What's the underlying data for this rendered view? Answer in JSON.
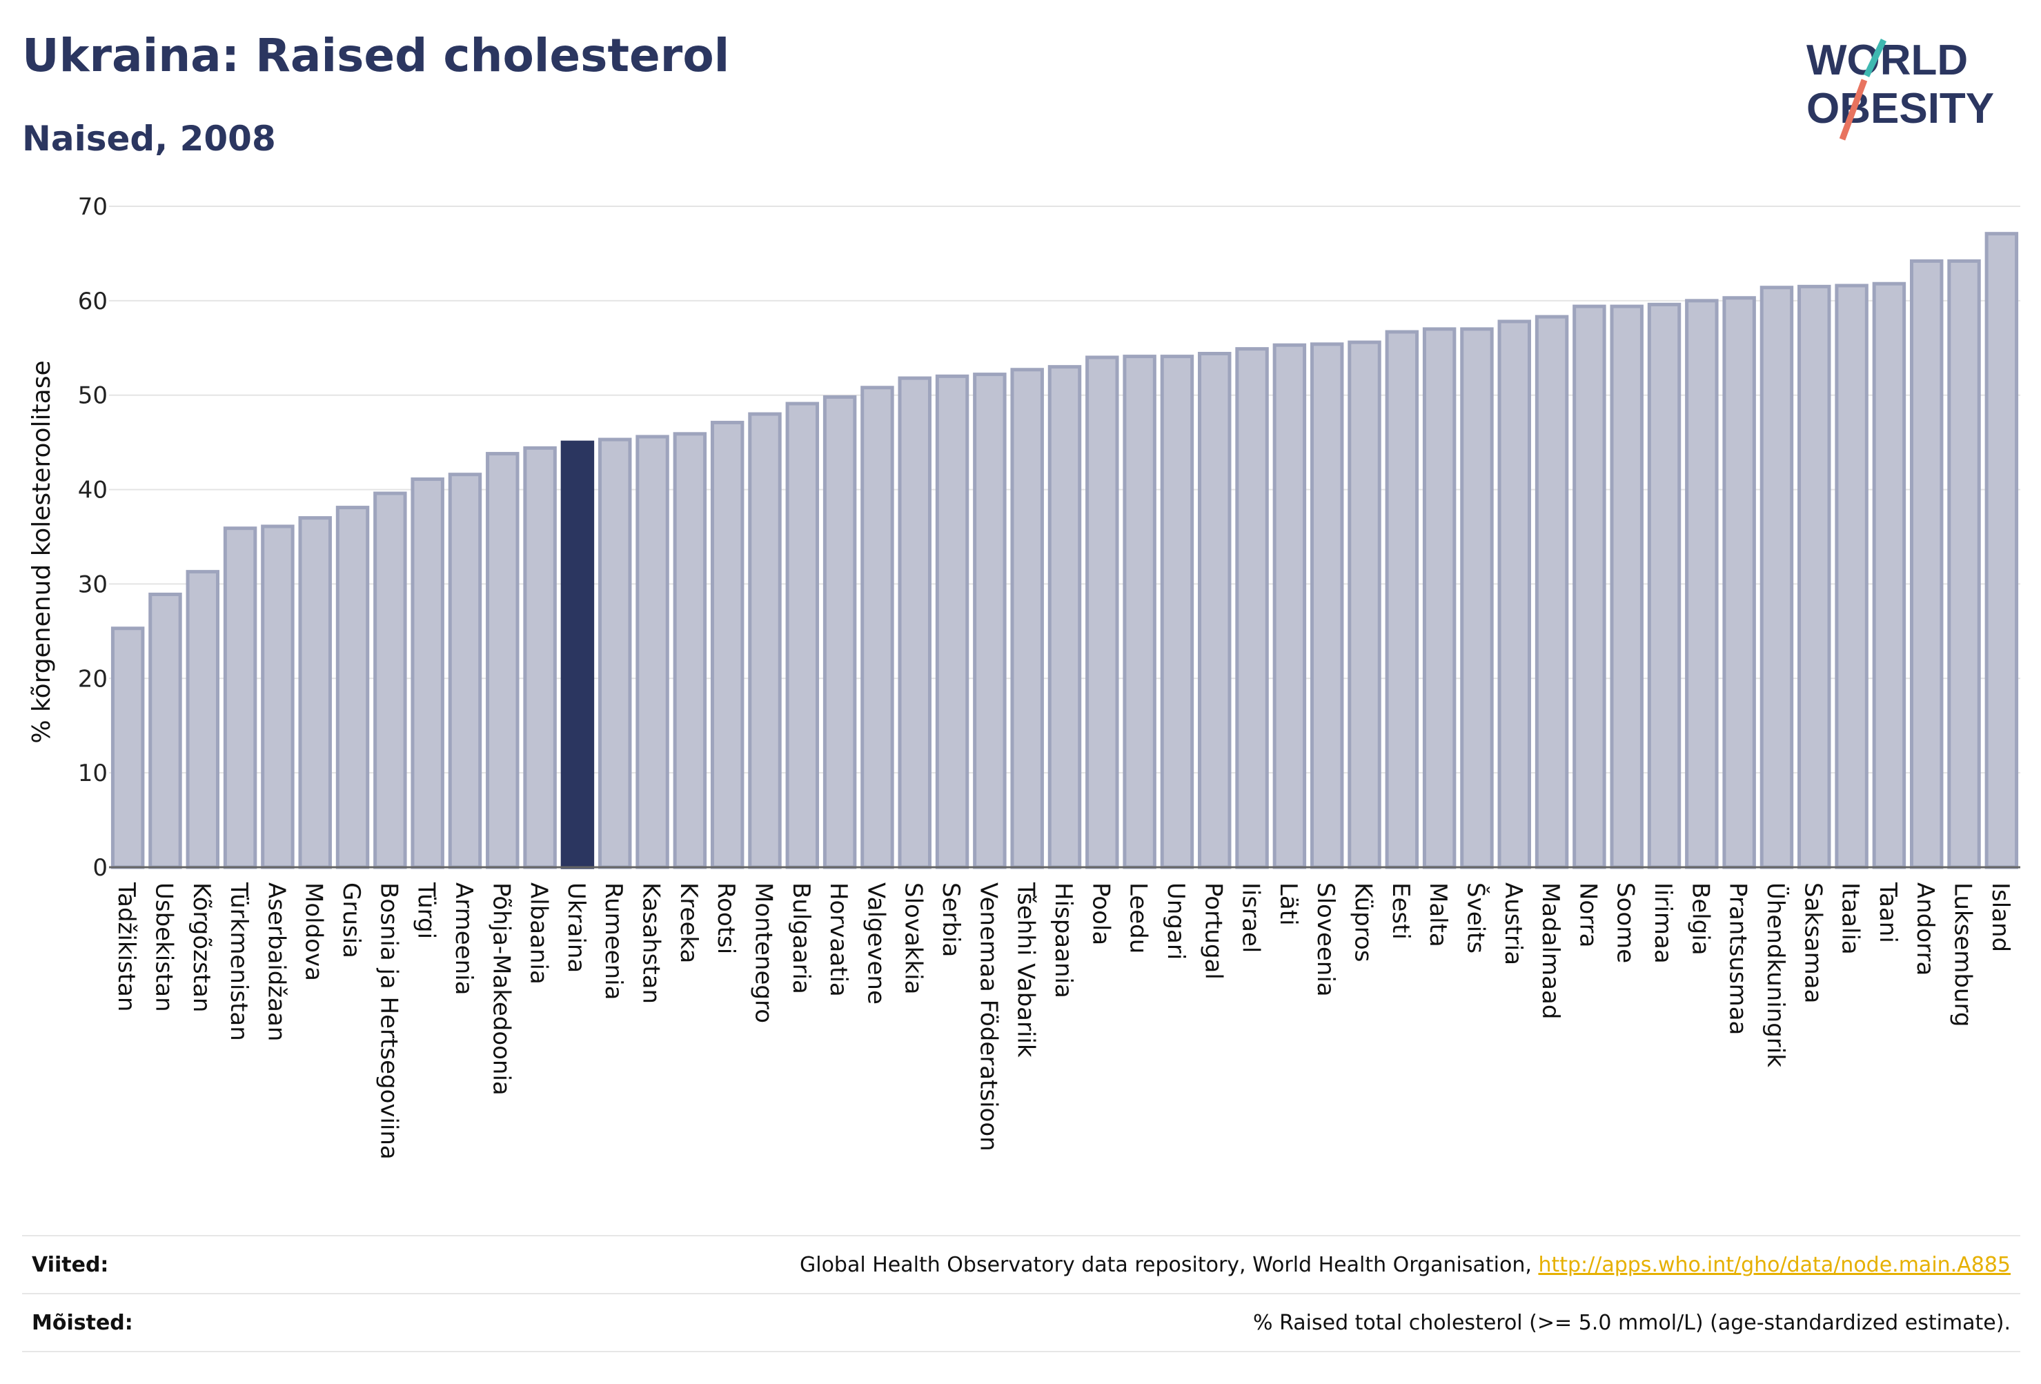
{
  "title": "Ukraina: Raised cholesterol",
  "subtitle": "Naised, 2008",
  "logo": {
    "line1": "WORLD",
    "line2": "OBESITY",
    "colors": {
      "text": "#2b3660",
      "slash_teal": "#3fb8b1",
      "slash_coral": "#e8735f"
    }
  },
  "footer": {
    "sources_label": "Viited:",
    "sources_text": "Global Health Observatory data repository, World Health Organisation,",
    "sources_link": "http://apps.who.int/gho/data/node.main.A885",
    "definitions_label": "Mõisted:",
    "definitions_text": "% Raised total cholesterol (>= 5.0 mmol/L) (age-standardized estimate)."
  },
  "colors": {
    "bar": "#bfc2d2",
    "bar_stroke": "#9ea4bd",
    "highlight": "#2b3660",
    "grid": "#e4e4e4",
    "baseline": "#666666"
  },
  "chart_data": {
    "type": "bar",
    "ylabel": "% kõrgenenud kolesteroolitase",
    "ylim": [
      0,
      70
    ],
    "yticks": [
      0,
      10,
      20,
      30,
      40,
      50,
      60,
      70
    ],
    "grid": true,
    "highlight": "Ukraina",
    "categories": [
      "Tadžikistan",
      "Usbekistan",
      "Kõrgõzstan",
      "Türkmenistan",
      "Aserbaidžaan",
      "Moldova",
      "Grusia",
      "Bosnia ja Hertsegoviina",
      "Türgi",
      "Armeenia",
      "Põhja-Makedoonia",
      "Albaania",
      "Ukraina",
      "Rumeenia",
      "Kasahstan",
      "Kreeka",
      "Rootsi",
      "Montenegro",
      "Bulgaaria",
      "Horvaatia",
      "Valgevene",
      "Slovakkia",
      "Serbia",
      "Venemaa Föderatsioon",
      "Tšehhi Vabariik",
      "Hispaania",
      "Poola",
      "Leedu",
      "Ungari",
      "Portugal",
      "Iisrael",
      "Läti",
      "Sloveenia",
      "Küpros",
      "Eesti",
      "Malta",
      "Šveits",
      "Austria",
      "Madalmaad",
      "Norra",
      "Soome",
      "Iirimaa",
      "Belgia",
      "Prantsusmaa",
      "Ühendkuningrik",
      "Saksamaa",
      "Itaalia",
      "Taani",
      "Andorra",
      "Luksemburg",
      "Island"
    ],
    "values": [
      25.3,
      28.9,
      31.3,
      35.9,
      36.1,
      37.0,
      38.1,
      39.6,
      41.1,
      41.6,
      43.8,
      44.4,
      45.0,
      45.3,
      45.6,
      45.9,
      47.1,
      48.0,
      49.1,
      49.8,
      50.8,
      51.8,
      52.0,
      52.2,
      52.7,
      53.0,
      54.0,
      54.1,
      54.1,
      54.4,
      54.9,
      55.3,
      55.4,
      55.6,
      56.7,
      57.0,
      57.0,
      57.8,
      58.3,
      59.4,
      59.4,
      59.6,
      60.0,
      60.3,
      61.4,
      61.5,
      61.6,
      61.8,
      64.2,
      64.2,
      67.1
    ]
  }
}
